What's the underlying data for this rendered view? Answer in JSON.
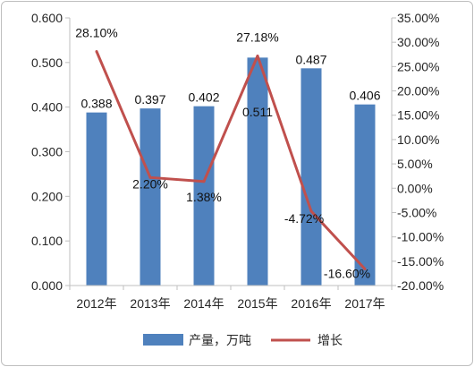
{
  "chart_data": {
    "type": "bar",
    "title": "",
    "xlabel": "",
    "ylabel": "",
    "categories": [
      "2012年",
      "2013年",
      "2014年",
      "2015年",
      "2016年",
      "2017年"
    ],
    "series": [
      {
        "name": "产量，万吨",
        "type": "bar",
        "axis": "left",
        "color": "#4f81bd",
        "values": [
          0.388,
          0.397,
          0.402,
          0.511,
          0.487,
          0.406
        ],
        "labels": [
          "0.388",
          "0.397",
          "0.402",
          "0.511",
          "0.487",
          "0.406"
        ]
      },
      {
        "name": "增长",
        "type": "line",
        "axis": "right",
        "color": "#c0504d",
        "values": [
          28.1,
          2.2,
          1.38,
          27.18,
          -4.72,
          -16.6
        ],
        "labels": [
          "28.10%",
          "2.20%",
          "1.38%",
          "27.18%",
          "-4.72%",
          "-16.60%"
        ]
      }
    ],
    "y_left": {
      "range": [
        0,
        0.6
      ],
      "ticks": [
        0,
        0.1,
        0.2,
        0.3,
        0.4,
        0.5,
        0.6
      ],
      "tick_labels": [
        "0.000",
        "0.100",
        "0.200",
        "0.300",
        "0.400",
        "0.500",
        "0.600"
      ]
    },
    "y_right": {
      "range": [
        -20,
        35
      ],
      "ticks": [
        -20,
        -15,
        -10,
        -5,
        0,
        5,
        10,
        15,
        20,
        25,
        30,
        35
      ],
      "tick_labels": [
        "-20.00%",
        "-15.00%",
        "-10.00%",
        "-5.00%",
        "0.00%",
        "5.00%",
        "10.00%",
        "15.00%",
        "20.00%",
        "25.00%",
        "30.00%",
        "35.00%"
      ]
    },
    "grid": false,
    "legend": "bottom"
  }
}
